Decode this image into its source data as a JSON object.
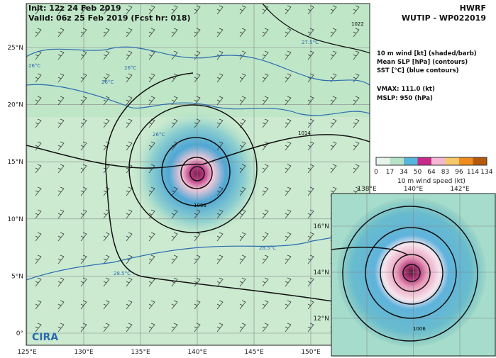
{
  "header": {
    "init": "Init:  12z 24 Feb 2019",
    "valid": "Valid: 06z 25 Feb 2019 (Fcst hr: 018)",
    "model": "HWRF",
    "storm": "WUTIP - WP022019"
  },
  "legend": {
    "lines": [
      "10 m wind [kt] (shaded/barb)",
      "Mean SLP [hPa] (contours)",
      "SST [°C] (blue contours)"
    ],
    "vmax": "VMAX: 111.0 (kt)",
    "mslp": "MSLP:  950 (hPa)"
  },
  "colorbar": {
    "ticks": [
      0,
      17,
      34,
      50,
      64,
      83,
      96,
      114,
      134
    ],
    "label": "10 m wind speed (kt)"
  },
  "main_map": {
    "lon_labels": [
      "125°E",
      "130°E",
      "135°E",
      "140°E",
      "145°E",
      "150°E"
    ],
    "lat_labels": [
      "0°",
      "5°N",
      "10°N",
      "15°N",
      "20°N",
      "25°N"
    ],
    "contour_labels": [
      "1022",
      "1014",
      "1006",
      "26°C",
      "26°C",
      "26°C",
      "26°C",
      "27.5°C",
      "28.5°C",
      "28.5°C"
    ]
  },
  "inset_map": {
    "lon_labels": [
      "138°E",
      "140°E",
      "142°E"
    ],
    "lat_labels": [
      "12°N",
      "14°N",
      "16°N"
    ],
    "contour_labels": [
      "1006"
    ]
  }
}
